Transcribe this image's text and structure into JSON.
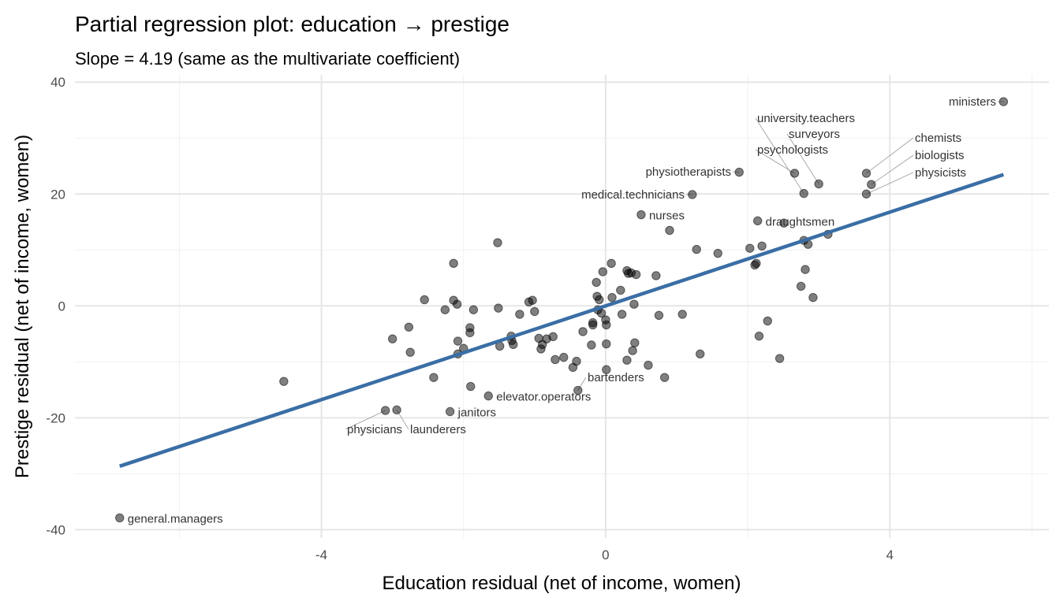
{
  "chart_data": {
    "type": "scatter",
    "title": "Partial regression plot: education → prestige",
    "subtitle": "Slope = 4.19 (same as the multivariate coefficient)",
    "xlabel": "Education residual (net of income, women)",
    "ylabel": "Prestige residual (net of income, women)",
    "xlim": [
      -7.47,
      6.24
    ],
    "ylim": [
      -41.5,
      41.3
    ],
    "xticks": [
      -4,
      0,
      4
    ],
    "yticks": [
      -40,
      -20,
      0,
      20,
      40
    ],
    "xminor": [
      -6,
      -2,
      2,
      6
    ],
    "yminor": [
      -30,
      -10,
      10,
      30
    ],
    "grid": true,
    "point_color": "#000000",
    "line_color": "#3a6ea5",
    "fit": {
      "slope": 4.19,
      "intercept": 0,
      "x_range": [
        -6.84,
        5.6
      ]
    },
    "points": [
      {
        "x": -6.84,
        "y": -37.9,
        "label": "general.managers"
      },
      {
        "x": -4.53,
        "y": -13.5
      },
      {
        "x": -3.1,
        "y": -18.7,
        "label": "physicians"
      },
      {
        "x": -2.94,
        "y": -18.6,
        "label": "launderers"
      },
      {
        "x": -2.19,
        "y": -18.9,
        "label": "janitors"
      },
      {
        "x": -3.0,
        "y": -5.9
      },
      {
        "x": -2.77,
        "y": -3.8
      },
      {
        "x": -2.75,
        "y": -8.3
      },
      {
        "x": -2.55,
        "y": 1.1
      },
      {
        "x": -2.42,
        "y": -12.8
      },
      {
        "x": -2.26,
        "y": -0.7
      },
      {
        "x": -2.14,
        "y": 7.6
      },
      {
        "x": -2.14,
        "y": 1.0
      },
      {
        "x": -2.09,
        "y": 0.3
      },
      {
        "x": -2.08,
        "y": -6.3
      },
      {
        "x": -2.08,
        "y": -8.6
      },
      {
        "x": -2.0,
        "y": -7.6
      },
      {
        "x": -1.91,
        "y": -3.9
      },
      {
        "x": -1.91,
        "y": -4.8
      },
      {
        "x": -1.9,
        "y": -14.4
      },
      {
        "x": -1.86,
        "y": -0.7
      },
      {
        "x": -1.65,
        "y": -16.1,
        "label": "elevator.operators"
      },
      {
        "x": -1.52,
        "y": 11.3
      },
      {
        "x": -1.51,
        "y": -0.4
      },
      {
        "x": -1.49,
        "y": -7.2
      },
      {
        "x": -1.33,
        "y": -5.4
      },
      {
        "x": -1.32,
        "y": -6.2
      },
      {
        "x": -1.3,
        "y": -6.9
      },
      {
        "x": -1.21,
        "y": -1.5
      },
      {
        "x": -1.08,
        "y": 0.7
      },
      {
        "x": -1.03,
        "y": 1.0
      },
      {
        "x": -1.0,
        "y": -1.0
      },
      {
        "x": -0.94,
        "y": -5.8
      },
      {
        "x": -0.91,
        "y": -7.7
      },
      {
        "x": -0.89,
        "y": -6.9
      },
      {
        "x": -0.83,
        "y": -5.9
      },
      {
        "x": -0.74,
        "y": -5.5
      },
      {
        "x": -0.71,
        "y": -9.6
      },
      {
        "x": -0.59,
        "y": -9.2
      },
      {
        "x": -0.46,
        "y": -11.0
      },
      {
        "x": -0.41,
        "y": -9.9
      },
      {
        "x": -0.39,
        "y": -15.1,
        "label": "bartenders"
      },
      {
        "x": -0.32,
        "y": -4.6
      },
      {
        "x": -0.2,
        "y": -7.0
      },
      {
        "x": -0.18,
        "y": -3.0
      },
      {
        "x": -0.18,
        "y": -3.4
      },
      {
        "x": -0.13,
        "y": 4.2
      },
      {
        "x": -0.12,
        "y": 1.7
      },
      {
        "x": -0.11,
        "y": -0.7
      },
      {
        "x": -0.09,
        "y": 1.1
      },
      {
        "x": -0.06,
        "y": -1.3
      },
      {
        "x": -0.04,
        "y": 6.1
      },
      {
        "x": 0.0,
        "y": -2.5
      },
      {
        "x": 0.01,
        "y": -6.8
      },
      {
        "x": 0.01,
        "y": -3.4
      },
      {
        "x": 0.01,
        "y": -11.4
      },
      {
        "x": 0.09,
        "y": 1.5
      },
      {
        "x": 0.08,
        "y": 7.6
      },
      {
        "x": 0.21,
        "y": 2.8
      },
      {
        "x": 0.23,
        "y": -1.5
      },
      {
        "x": 0.3,
        "y": 6.3
      },
      {
        "x": 0.3,
        "y": -9.7
      },
      {
        "x": 0.32,
        "y": 5.8
      },
      {
        "x": 0.36,
        "y": 5.9
      },
      {
        "x": 0.38,
        "y": -8.0
      },
      {
        "x": 0.4,
        "y": 0.3
      },
      {
        "x": 0.41,
        "y": -6.6
      },
      {
        "x": 0.43,
        "y": 5.6
      },
      {
        "x": 0.5,
        "y": 16.3,
        "label": "nurses"
      },
      {
        "x": 0.6,
        "y": -10.6
      },
      {
        "x": 0.71,
        "y": 5.4
      },
      {
        "x": 0.75,
        "y": -1.7
      },
      {
        "x": 0.83,
        "y": -12.8
      },
      {
        "x": 0.9,
        "y": 13.5
      },
      {
        "x": 1.08,
        "y": -1.5
      },
      {
        "x": 1.22,
        "y": 19.9,
        "label": "medical.technicians"
      },
      {
        "x": 1.28,
        "y": 10.1
      },
      {
        "x": 1.33,
        "y": -8.6
      },
      {
        "x": 1.58,
        "y": 9.4
      },
      {
        "x": 1.88,
        "y": 23.9,
        "label": "physiotherapists"
      },
      {
        "x": 2.03,
        "y": 10.3
      },
      {
        "x": 2.1,
        "y": 7.3
      },
      {
        "x": 2.12,
        "y": 7.6
      },
      {
        "x": 2.14,
        "y": 15.2,
        "label": "draughtsmen"
      },
      {
        "x": 2.16,
        "y": -5.4
      },
      {
        "x": 2.2,
        "y": 10.7
      },
      {
        "x": 2.28,
        "y": -2.7
      },
      {
        "x": 2.45,
        "y": -9.4
      },
      {
        "x": 2.51,
        "y": 14.8
      },
      {
        "x": 2.66,
        "y": 23.7,
        "label": "psychologists"
      },
      {
        "x": 2.75,
        "y": 3.5
      },
      {
        "x": 2.79,
        "y": 11.7
      },
      {
        "x": 2.79,
        "y": 20.1,
        "label": "university.teachers"
      },
      {
        "x": 2.81,
        "y": 6.5
      },
      {
        "x": 2.85,
        "y": 11.0
      },
      {
        "x": 2.92,
        "y": 1.5
      },
      {
        "x": 3.0,
        "y": 21.8,
        "label": "surveyors"
      },
      {
        "x": 3.13,
        "y": 12.8
      },
      {
        "x": 3.67,
        "y": 23.7,
        "label": "chemists"
      },
      {
        "x": 3.67,
        "y": 20.0,
        "label": "physicists"
      },
      {
        "x": 3.74,
        "y": 21.7,
        "label": "biologists"
      },
      {
        "x": 5.6,
        "y": 36.5,
        "label": "ministers"
      }
    ]
  }
}
